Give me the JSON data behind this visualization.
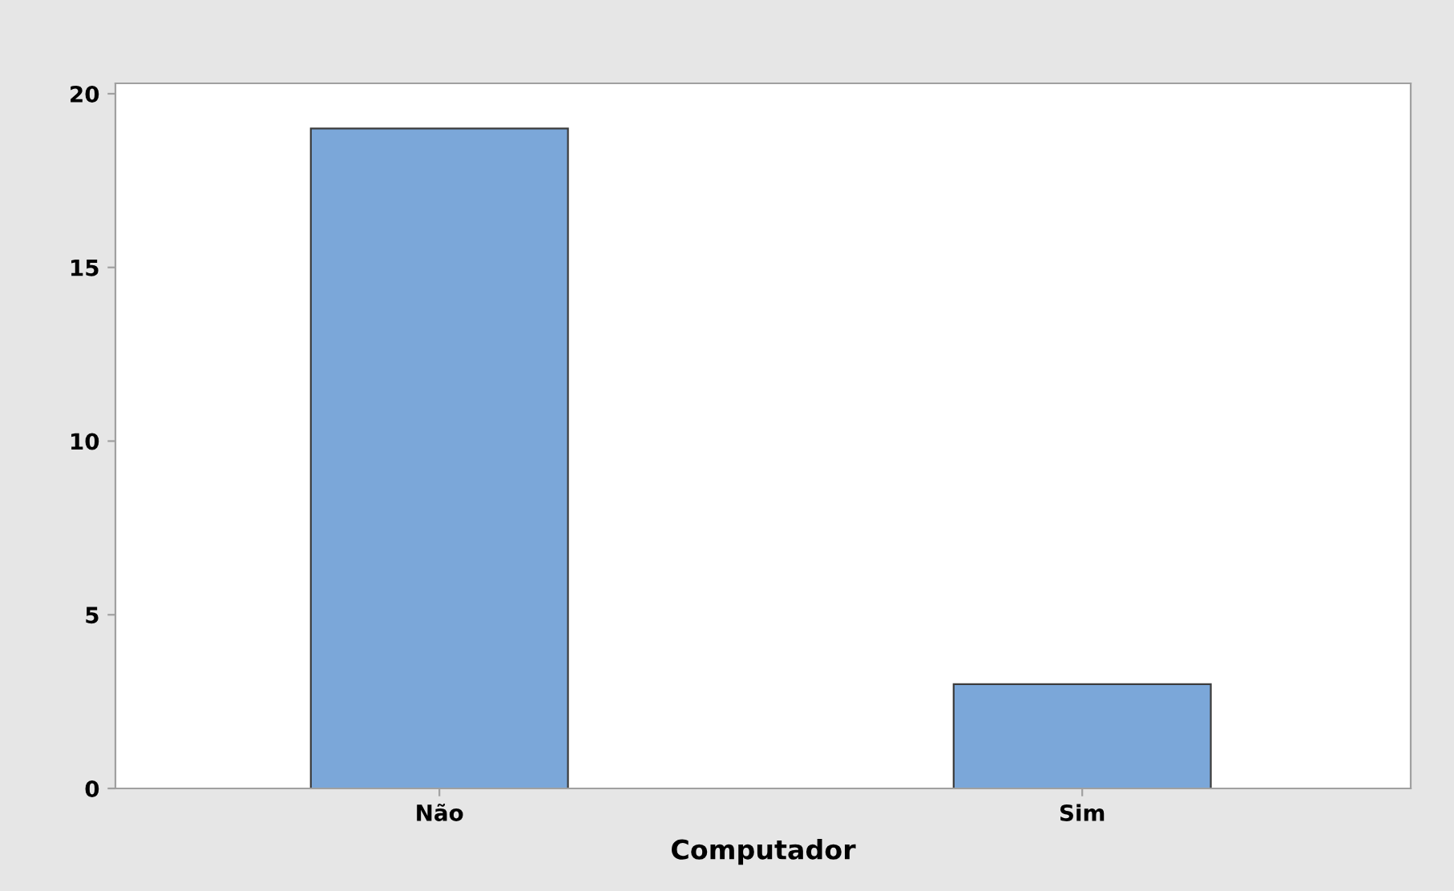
{
  "chart_data": {
    "type": "bar",
    "xlabel": "Computador",
    "categories": [
      "Não",
      "Sim"
    ],
    "values": [
      19,
      3
    ],
    "color": "#7ba7d9",
    "ylim": [
      0,
      20.3
    ],
    "yticks": [
      0,
      5,
      10,
      15,
      20
    ],
    "grid": false
  }
}
